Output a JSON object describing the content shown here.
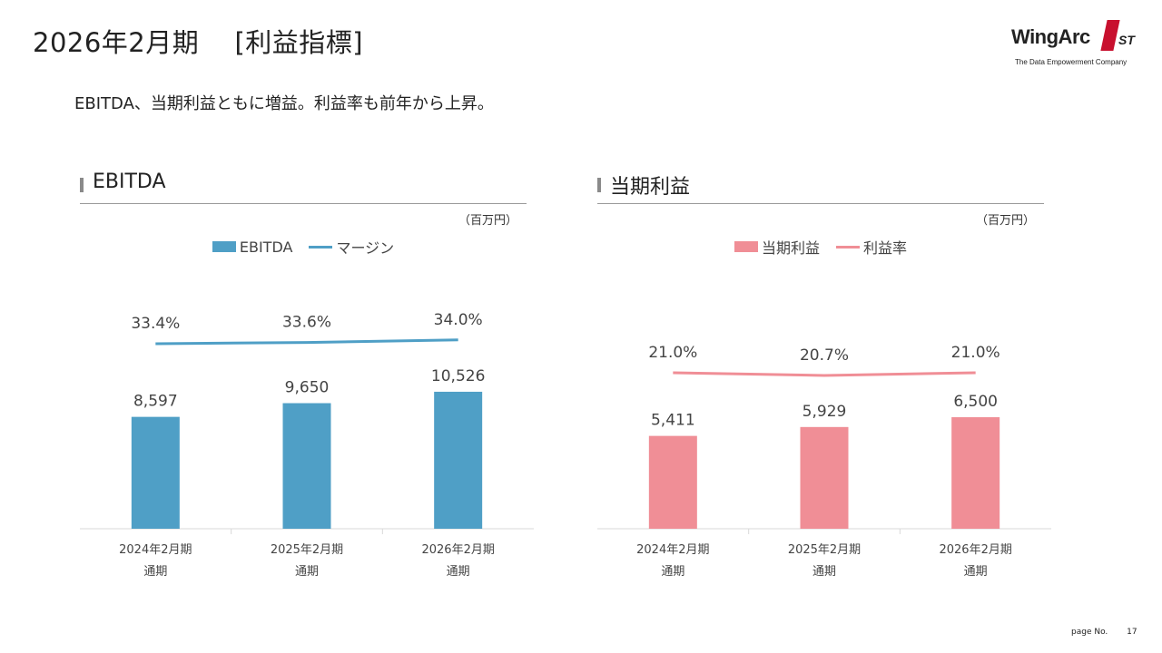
{
  "header": {
    "title": "2026年2月期　 [利益指標]",
    "subtitle": "EBITDA、当期利益ともに増益。利益率も前年から上昇。"
  },
  "logo": {
    "word": "WingArc",
    "mark": "1",
    "suffix": "ST",
    "tagline": "The Data Empowerment Company"
  },
  "footer": {
    "page_label": "page No.",
    "page_number": "17"
  },
  "colors": {
    "ebitda": "#4f9fc6",
    "net_income": "#f08e96"
  },
  "chart_data": [
    {
      "type": "bar",
      "title": "EBITDA",
      "unit": "（百万円）",
      "categories": [
        [
          "2024年2月期",
          "通期"
        ],
        [
          "2025年2月期",
          "通期"
        ],
        [
          "2026年2月期",
          "通期"
        ]
      ],
      "series": [
        {
          "name": "EBITDA",
          "type": "bar",
          "values": [
            8597,
            9650,
            10526
          ],
          "labels": [
            "8,597",
            "9,650",
            "10,526"
          ]
        },
        {
          "name": "マージン",
          "type": "line",
          "values": [
            33.4,
            33.6,
            34.0
          ],
          "labels": [
            "33.4%",
            "33.6%",
            "34.0%"
          ]
        }
      ],
      "legend_position": "top",
      "grid": false
    },
    {
      "type": "bar",
      "title": "当期利益",
      "unit": "（百万円）",
      "categories": [
        [
          "2024年2月期",
          "通期"
        ],
        [
          "2025年2月期",
          "通期"
        ],
        [
          "2026年2月期",
          "通期"
        ]
      ],
      "series": [
        {
          "name": "当期利益",
          "type": "bar",
          "values": [
            5411,
            5929,
            6500
          ],
          "labels": [
            "5,411",
            "5,929",
            "6,500"
          ]
        },
        {
          "name": "利益率",
          "type": "line",
          "values": [
            21.0,
            20.7,
            21.0
          ],
          "labels": [
            "21.0%",
            "20.7%",
            "21.0%"
          ]
        }
      ],
      "legend_position": "top",
      "grid": false
    }
  ]
}
